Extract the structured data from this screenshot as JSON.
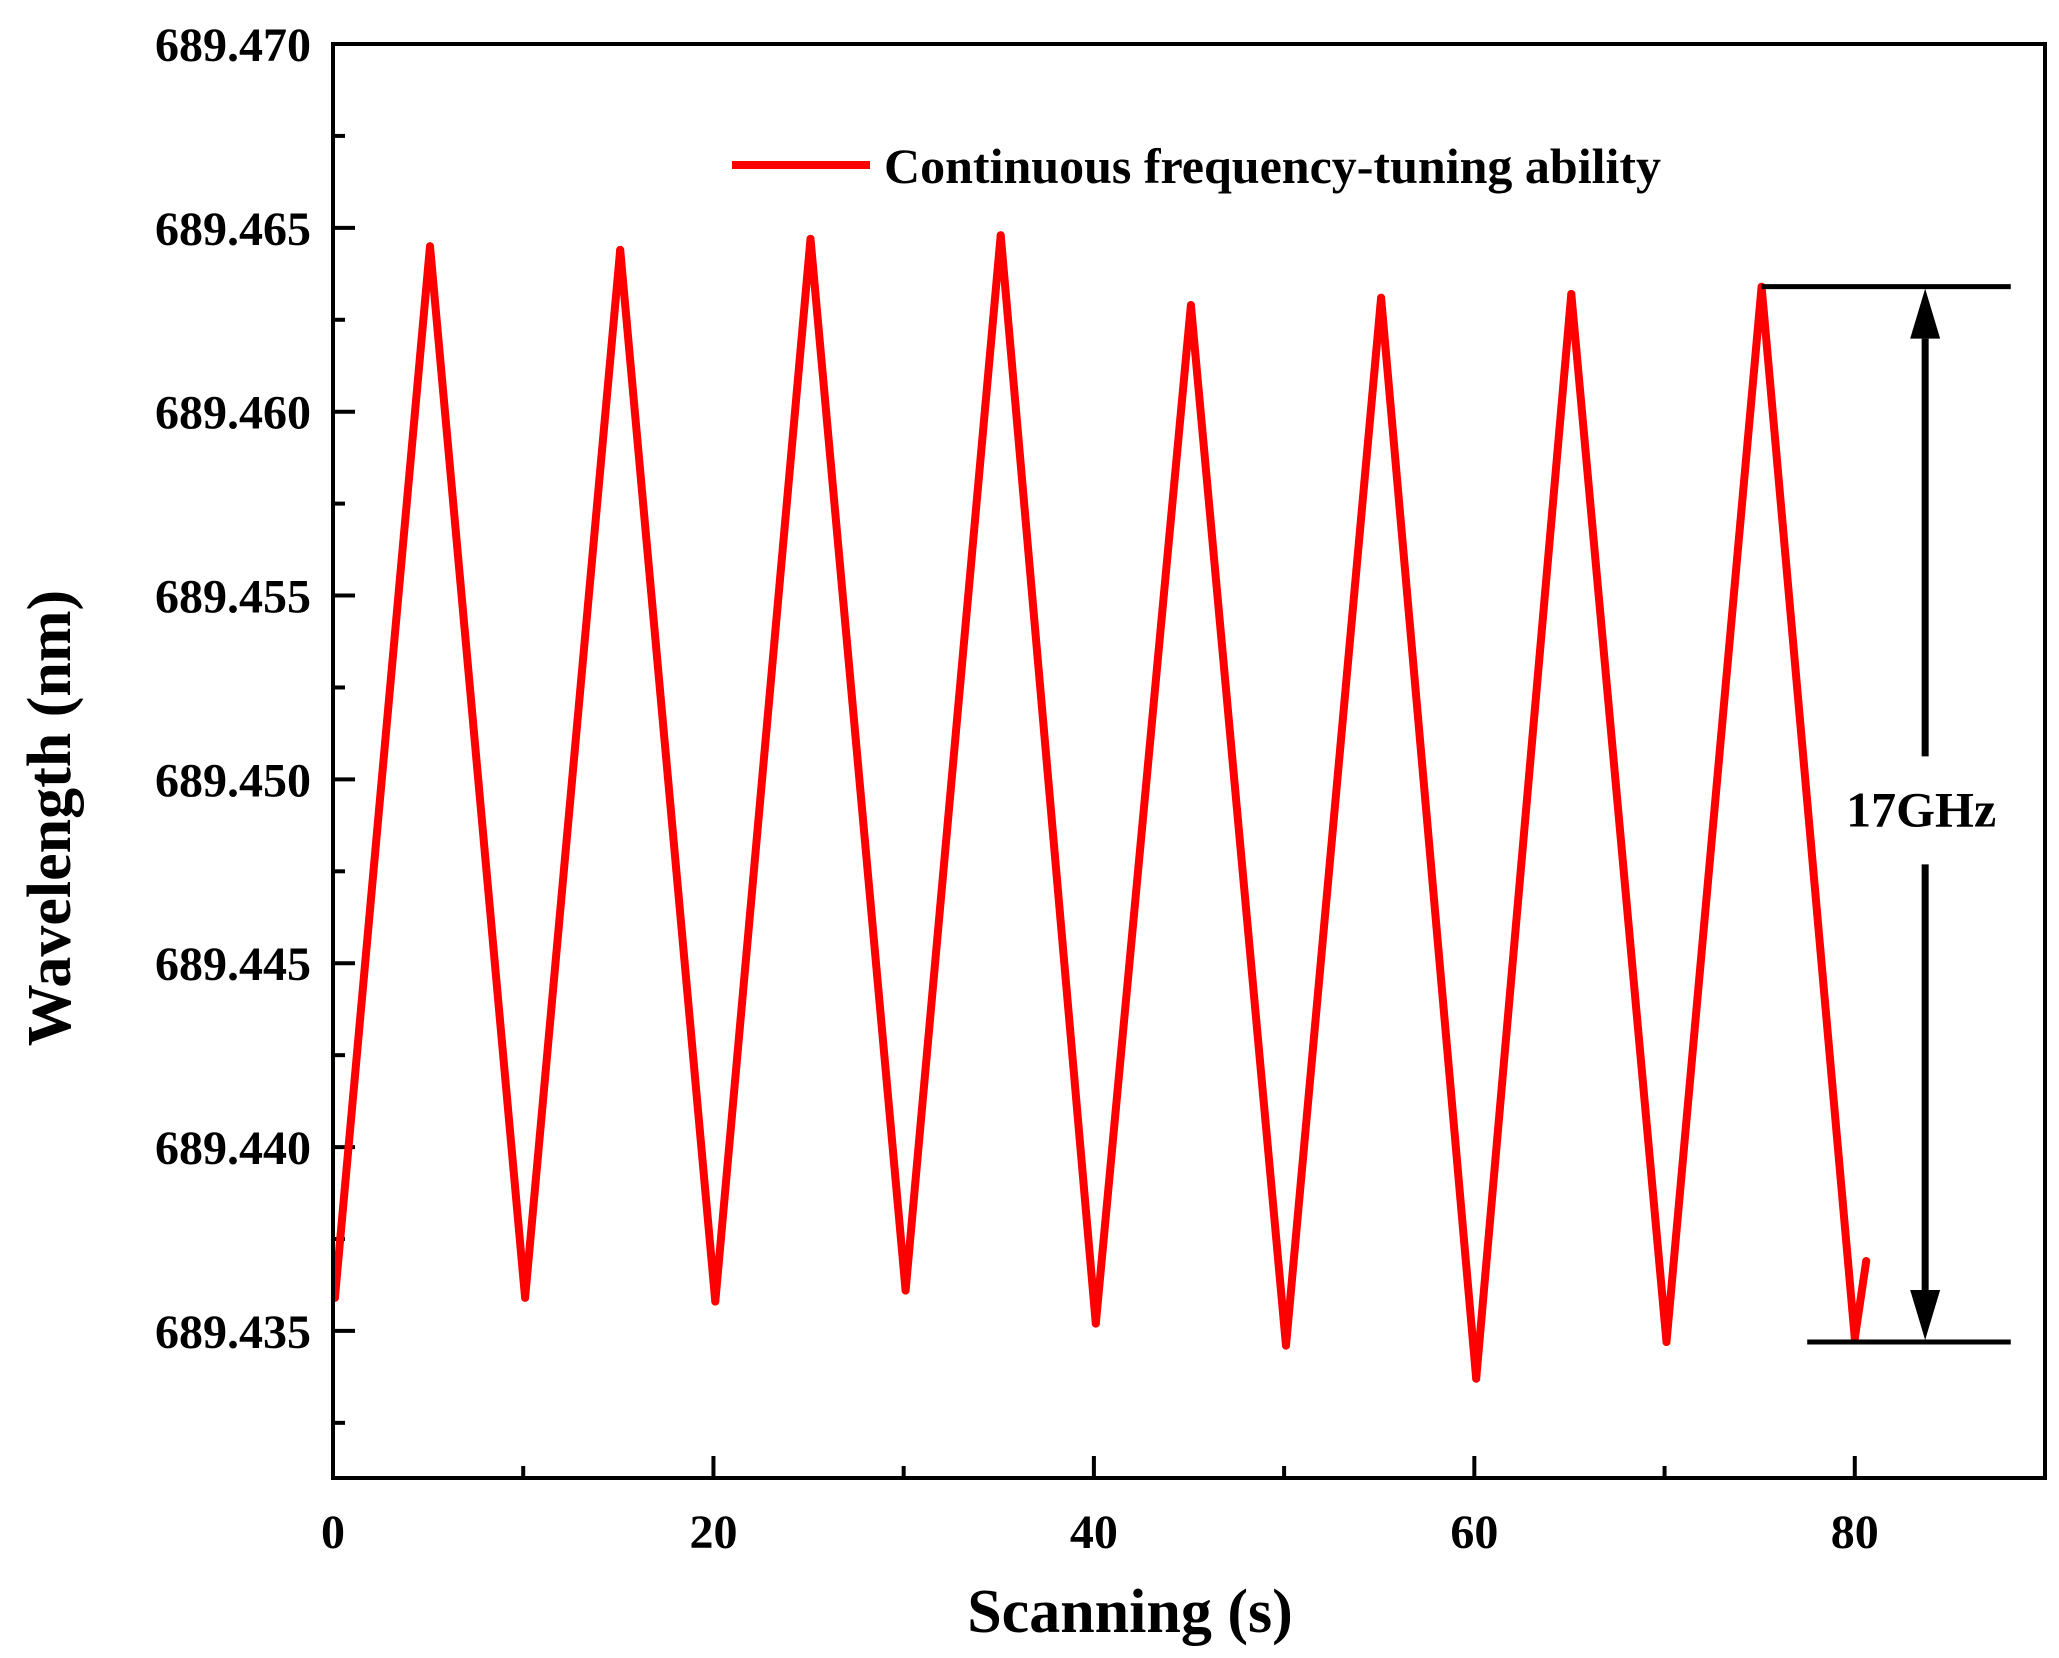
{
  "chart_data": {
    "type": "line",
    "title": "",
    "xlabel": "Scanning (s)",
    "ylabel": "Wavelength (nm)",
    "xlim": [
      0,
      90
    ],
    "ylim": [
      689.431,
      689.47
    ],
    "x_ticks": [
      0,
      20,
      40,
      60,
      80
    ],
    "x_minor_ticks": [
      10,
      30,
      50,
      70,
      90
    ],
    "y_ticks": [
      689.435,
      689.44,
      689.445,
      689.45,
      689.455,
      689.46,
      689.465,
      689.47
    ],
    "y_tick_labels": [
      "689.435",
      "689.440",
      "689.445",
      "689.450",
      "689.455",
      "689.460",
      "689.465",
      "689.470"
    ],
    "legend_position": "top-right",
    "series": [
      {
        "name": "Continuous frequency-tuning ability",
        "color": "#ff0000",
        "x": [
          0.1,
          5.1,
          10.1,
          15.1,
          20.1,
          25.1,
          30.1,
          35.1,
          40.1,
          45.1,
          50.1,
          55.1,
          60.1,
          65.1,
          70.1,
          75.1,
          80.0,
          80.6
        ],
        "y": [
          689.4359,
          689.4645,
          689.4359,
          689.4644,
          689.4358,
          689.4647,
          689.4361,
          689.4648,
          689.4352,
          689.4629,
          689.4346,
          689.4631,
          689.4337,
          689.4632,
          689.4347,
          689.4634,
          689.4348,
          689.4369
        ]
      }
    ],
    "annotations": [
      {
        "text": "17GHz",
        "type": "double-arrow",
        "x": 83.7,
        "y_top": 689.4634,
        "y_bottom": 689.4347,
        "upper_line": {
          "x_from": 75.1,
          "x_to": 88.2,
          "y": 689.4634
        },
        "lower_line": {
          "x_from": 77.5,
          "x_to": 88.2,
          "y": 689.4347
        }
      }
    ]
  }
}
